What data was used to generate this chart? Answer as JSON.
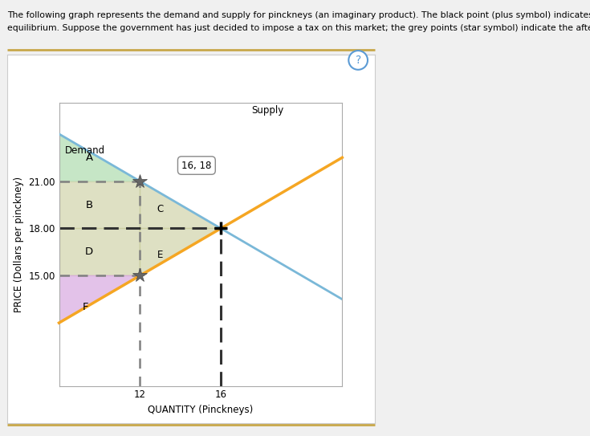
{
  "line1": "The following graph represents the demand and supply for pinckneys (an imaginary product). The black point (plus symbol) indicates the pre-tax",
  "line2": "equilibrium. Suppose the government has just decided to impose a tax on this market; the grey points (star symbol) indicate the after-tax scenario.",
  "xlabel": "QUANTITY (Pinckneys)",
  "ylabel": "PRICE (Dollars per pinckney)",
  "xlim": [
    8,
    22
  ],
  "ylim": [
    8,
    26
  ],
  "xticks": [
    12,
    16
  ],
  "yticks": [
    15.0,
    18.0,
    21.0
  ],
  "demand_slope": -0.75,
  "demand_intercept": 30,
  "supply_slope": 0.75,
  "supply_intercept": 6,
  "demand_color": "#7ab8d8",
  "supply_color": "#f5a623",
  "equilibrium_x": 16,
  "equilibrium_y": 18,
  "after_tax_buyer_x": 12,
  "after_tax_buyer_y": 21,
  "after_tax_seller_x": 12,
  "after_tax_seller_y": 15,
  "region_A_color": "#b8e0b8",
  "region_A_alpha": 0.8,
  "region_BCDE_color": "#c8cc9c",
  "region_BCDE_alpha": 0.6,
  "region_F_color": "#d8a8e0",
  "region_F_alpha": 0.7,
  "label_A": "A",
  "label_B": "B",
  "label_C": "C",
  "label_D": "D",
  "label_E": "E",
  "label_F": "F",
  "label_demand": "Demand",
  "label_supply": "Supply",
  "annotation_text": "16, 18",
  "background_color": "#ffffff",
  "outer_background": "#f0f0f0",
  "panel_background": "#ffffff",
  "gold_line_color": "#c8a84b",
  "question_color": "#5b9bd5"
}
